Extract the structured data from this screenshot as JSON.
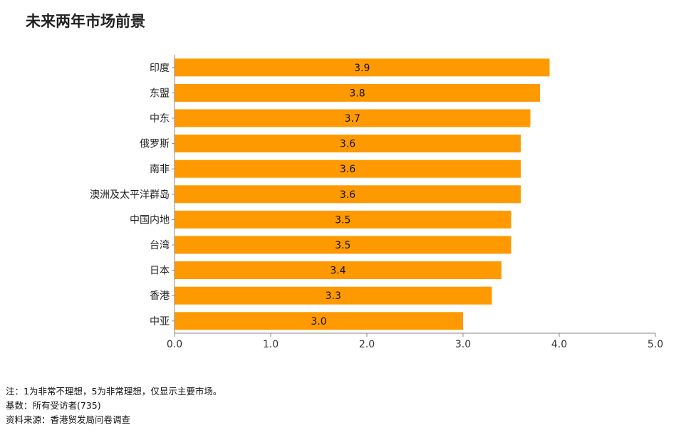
{
  "chart_data": {
    "type": "bar",
    "orientation": "horizontal",
    "title": "未来两年市场前景",
    "categories": [
      "印度",
      "东盟",
      "中东",
      "俄罗斯",
      "南非",
      "澳洲及太平洋群岛",
      "中国内地",
      "台湾",
      "日本",
      "香港",
      "中亚"
    ],
    "values": [
      3.9,
      3.8,
      3.7,
      3.6,
      3.6,
      3.6,
      3.5,
      3.5,
      3.4,
      3.3,
      3.0
    ],
    "value_labels": [
      "3.9",
      "3.8",
      "3.7",
      "3.6",
      "3.6",
      "3.6",
      "3.5",
      "3.5",
      "3.4",
      "3.3",
      "3.0"
    ],
    "xlim": [
      0,
      5
    ],
    "xticks": [
      "0.0",
      "1.0",
      "2.0",
      "3.0",
      "4.0",
      "5.0"
    ],
    "bar_color": "#ff9900",
    "grid": false
  },
  "notes": {
    "note": "注：1为非常不理想，5为非常理想，仅显示主要市场。",
    "base": "基数：所有受访者(735)",
    "source": "资料来源：香港贸发局问卷调查"
  }
}
